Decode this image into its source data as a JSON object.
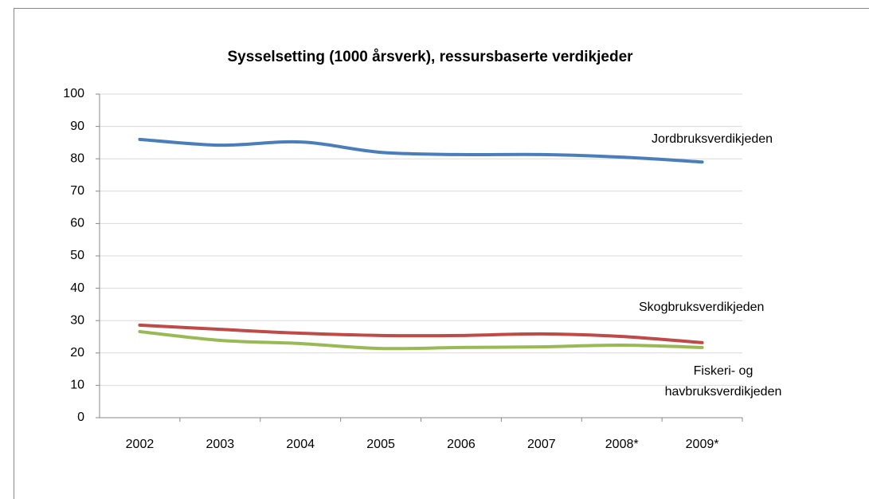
{
  "chart_data": {
    "type": "line",
    "title": "Sysselsetting (1000  årsverk), ressursbaserte verdikjeder",
    "categories": [
      "2002",
      "2003",
      "2004",
      "2005",
      "2006",
      "2007",
      "2008*",
      "2009*"
    ],
    "series": [
      {
        "name": "Jordbruksverdikjeden",
        "color": "#4a7ebb",
        "values": [
          86,
          84.2,
          85.2,
          82,
          81.3,
          81.3,
          80.5,
          79
        ]
      },
      {
        "name": "Skogbruksverdikjeden",
        "color": "#be4b48",
        "values": [
          28.6,
          27.3,
          26.1,
          25.4,
          25.4,
          25.9,
          25.1,
          23.2
        ]
      },
      {
        "name": "Fiskeri- og havbruksverdikjeden",
        "color": "#98b954",
        "values": [
          26.6,
          23.9,
          22.9,
          21.4,
          21.7,
          21.9,
          22.4,
          21.7
        ]
      }
    ],
    "ylim": [
      0,
      100
    ],
    "yticks": [
      0,
      10,
      20,
      30,
      40,
      50,
      60,
      70,
      80,
      90,
      100
    ],
    "grid": true
  }
}
